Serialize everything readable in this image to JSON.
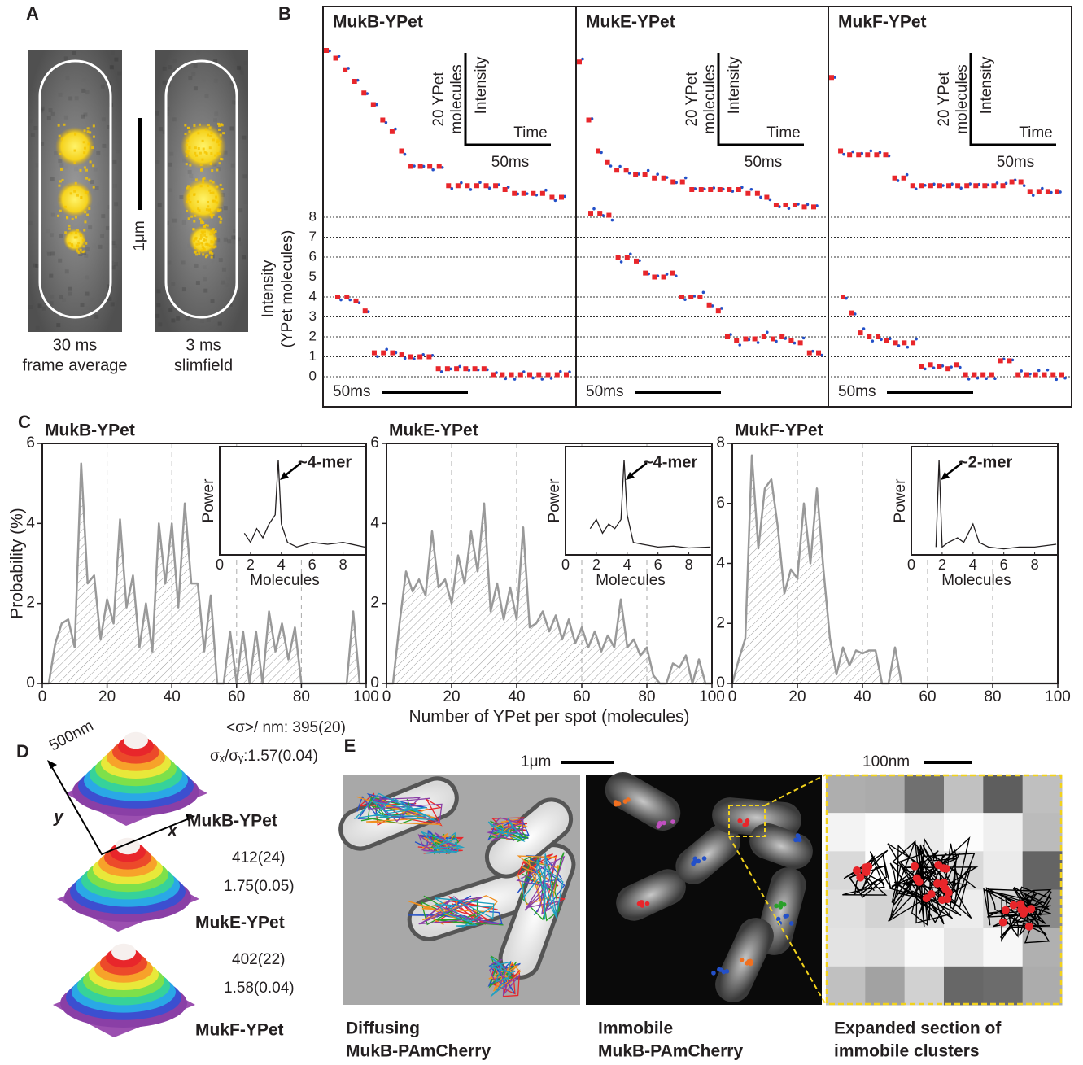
{
  "panel_a": {
    "label": "A",
    "scale_bar": "1μm",
    "images": [
      {
        "caption": [
          "30 ms",
          "frame average"
        ]
      },
      {
        "caption": [
          "3 ms",
          "slimfield"
        ]
      }
    ]
  },
  "panel_b": {
    "label": "B",
    "ylabel": [
      "Intensity",
      "(YPet molecules)"
    ],
    "ylim": [
      0,
      8
    ],
    "yticks": [
      0,
      1,
      2,
      3,
      4,
      5,
      6,
      7,
      8
    ],
    "scale_bar": "50ms",
    "inset": {
      "ylabel": "Intensity",
      "xlabel": "Time",
      "size_label": [
        "20 YPet",
        "molecules"
      ],
      "time_label": "50ms"
    },
    "traces": [
      {
        "title": "MukB-YPet",
        "color": "#e8262b",
        "upper": [
          48,
          46,
          43,
          40,
          37,
          34,
          30,
          27,
          22,
          18,
          18,
          18,
          18,
          13,
          13,
          13,
          13,
          13,
          13,
          12,
          11,
          11,
          11,
          11,
          10,
          10
        ],
        "lower": [
          4,
          4,
          3.8,
          3.3,
          1.2,
          1.2,
          1.2,
          1.1,
          1,
          1,
          1,
          0.4,
          0.4,
          0.4,
          0.4,
          0.4,
          0.4,
          0.1,
          0.1,
          0.1,
          0.1,
          0.1,
          0.1,
          0.1,
          0.1,
          0.1
        ]
      },
      {
        "title": "MukE-YPet",
        "color": "#e8262b",
        "upper": [
          45,
          30,
          22,
          19,
          17,
          17,
          16,
          16,
          15,
          15,
          14,
          14,
          12,
          12,
          12,
          12,
          12,
          12,
          11,
          11,
          10,
          8,
          8,
          8,
          7.5,
          7.5
        ],
        "lower": [
          8.2,
          8.2,
          8.1,
          6.0,
          6.0,
          5.8,
          5.2,
          5.0,
          5.0,
          5.2,
          4.0,
          4.0,
          4.0,
          3.6,
          3.3,
          2.0,
          1.8,
          1.9,
          1.9,
          2.0,
          1.9,
          2.0,
          1.8,
          1.7,
          1.2,
          1.2
        ]
      },
      {
        "title": "MukF-YPet",
        "color": "#e8262b",
        "upper": [
          41,
          22,
          21,
          21,
          21,
          21,
          21,
          15,
          15,
          13,
          13,
          13,
          13,
          13,
          13,
          13,
          13,
          13,
          13,
          13,
          14,
          14,
          11.5,
          11.5,
          11.5,
          11.5
        ],
        "lower": [
          4,
          3.2,
          2.2,
          2.0,
          2.0,
          1.8,
          1.7,
          1.7,
          1.7,
          0.5,
          0.6,
          0.5,
          0.4,
          0.6,
          0.1,
          0.1,
          0.1,
          0.1,
          0.8,
          0.8,
          0.1,
          0.1,
          0.1,
          0.1,
          0.1,
          0.1
        ]
      }
    ]
  },
  "chart_data": [
    {
      "type": "area",
      "panel_label": "C",
      "title": "MukB-YPet",
      "ylabel": "Probability (%)",
      "color": "#999999",
      "grid": true,
      "xlim": [
        0,
        100
      ],
      "xticks": [
        0,
        20,
        40,
        60,
        80,
        100
      ],
      "ylim": [
        0,
        6
      ],
      "yticks": [
        0,
        2,
        4,
        6
      ],
      "x": [
        0,
        2,
        4,
        6,
        8,
        10,
        12,
        14,
        16,
        18,
        20,
        22,
        24,
        26,
        28,
        30,
        32,
        34,
        36,
        38,
        40,
        42,
        44,
        46,
        48,
        50,
        52,
        54,
        56,
        58,
        60,
        62,
        64,
        66,
        68,
        70,
        72,
        74,
        76,
        78,
        80,
        82,
        84,
        86,
        88,
        90,
        92,
        94,
        96,
        98,
        100
      ],
      "values": [
        0,
        0,
        1.0,
        1.5,
        1.6,
        0.9,
        5.5,
        2.5,
        2.7,
        1.1,
        2.1,
        1.5,
        4.1,
        1.9,
        2.7,
        0.9,
        2.0,
        0.8,
        4.0,
        2.5,
        4.0,
        1.9,
        4.5,
        2.5,
        2.5,
        0.8,
        2.2,
        0,
        0,
        1.3,
        0,
        1.3,
        0,
        1.3,
        0,
        1.8,
        0.8,
        1.5,
        0.6,
        1.4,
        0,
        0,
        0,
        0,
        0,
        0,
        0,
        0,
        1.8,
        0,
        0
      ],
      "inset": {
        "type": "line",
        "ylabel": "Power",
        "xlabel": "Molecules",
        "annotation": "~4-mer",
        "xlim": [
          0,
          9.5
        ],
        "xticks": [
          0,
          2,
          4,
          6,
          8
        ],
        "ylim": [
          0,
          1
        ],
        "x": [
          1.6,
          2.0,
          2.4,
          2.8,
          3.2,
          3.6,
          3.8,
          4.0,
          4.4,
          5,
          6,
          7,
          8,
          9.4
        ],
        "values": [
          0.2,
          0.1,
          0.25,
          0.15,
          0.3,
          0.4,
          1.0,
          0.3,
          0.1,
          0.05,
          0.1,
          0.08,
          0.1,
          0.05
        ]
      }
    },
    {
      "type": "area",
      "title": "MukE-YPet",
      "xlabel": "Number of YPet per spot (molecules)",
      "color": "#999999",
      "grid": true,
      "xlim": [
        0,
        100
      ],
      "xticks": [
        0,
        20,
        40,
        60,
        80,
        100
      ],
      "ylim": [
        0,
        6
      ],
      "yticks": [
        0,
        2,
        4,
        6
      ],
      "x": [
        0,
        2,
        4,
        6,
        8,
        10,
        12,
        14,
        16,
        18,
        20,
        22,
        24,
        26,
        28,
        30,
        32,
        34,
        36,
        38,
        40,
        42,
        44,
        46,
        48,
        50,
        52,
        54,
        56,
        58,
        60,
        62,
        64,
        66,
        68,
        70,
        72,
        74,
        76,
        78,
        80,
        82,
        84,
        86,
        88,
        90,
        92,
        94,
        96,
        98,
        100
      ],
      "values": [
        0,
        0,
        1.5,
        2.8,
        2.3,
        2.6,
        2.2,
        3.8,
        2.4,
        2.6,
        2.0,
        3.2,
        2.5,
        3.8,
        2.8,
        4.5,
        1.8,
        2.5,
        1.6,
        2.4,
        1.6,
        3.9,
        1.4,
        1.5,
        1.8,
        1.3,
        1.7,
        1.1,
        1.6,
        1.0,
        1.4,
        0.9,
        1.3,
        0.8,
        1.2,
        0.9,
        2.1,
        0.9,
        1.1,
        0.7,
        0.9,
        0.2,
        0,
        0,
        0.5,
        0.4,
        0.7,
        0,
        0.6,
        0,
        0
      ],
      "inset": {
        "type": "line",
        "ylabel": "Power",
        "xlabel": "Molecules",
        "annotation": "~4-mer",
        "xlim": [
          0,
          9.5
        ],
        "xticks": [
          0,
          2,
          4,
          6,
          8
        ],
        "ylim": [
          0,
          1
        ],
        "x": [
          1.6,
          2.0,
          2.4,
          2.8,
          3.2,
          3.6,
          3.8,
          4.0,
          4.4,
          5,
          6,
          7,
          8,
          9.4
        ],
        "values": [
          0.25,
          0.35,
          0.2,
          0.3,
          0.25,
          0.35,
          1.0,
          0.4,
          0.1,
          0.08,
          0.05,
          0.06,
          0.04,
          0.05
        ]
      }
    },
    {
      "type": "area",
      "title": "MukF-YPet",
      "color": "#999999",
      "grid": true,
      "xlim": [
        0,
        100
      ],
      "xticks": [
        0,
        20,
        40,
        60,
        80,
        100
      ],
      "ylim": [
        0,
        8
      ],
      "yticks": [
        0,
        2,
        4,
        6,
        8
      ],
      "x": [
        0,
        2,
        4,
        6,
        8,
        10,
        12,
        14,
        16,
        18,
        20,
        22,
        24,
        26,
        28,
        30,
        32,
        34,
        36,
        38,
        40,
        42,
        44,
        46,
        48,
        50,
        52,
        54,
        56,
        58,
        60,
        62,
        64,
        66,
        68,
        70,
        72,
        74,
        76,
        78,
        80,
        82,
        84,
        86,
        88,
        90,
        92,
        94,
        96,
        98,
        100
      ],
      "values": [
        0,
        0.8,
        1.5,
        7.6,
        4.5,
        6.5,
        6.8,
        5.2,
        3.0,
        3.8,
        3.5,
        6.0,
        4.0,
        6.5,
        3.8,
        1.5,
        0.3,
        1.2,
        0.6,
        1.1,
        1.0,
        1.1,
        1.1,
        0,
        0,
        1.2,
        0,
        0,
        0,
        0,
        0,
        0,
        0,
        0,
        0,
        0,
        0,
        0,
        0,
        0,
        0,
        0,
        0,
        0,
        0,
        0,
        0,
        0,
        0,
        0,
        0
      ],
      "inset": {
        "type": "line",
        "ylabel": "Power",
        "xlabel": "Molecules",
        "annotation": "~2-mer",
        "xlim": [
          0,
          9.5
        ],
        "xticks": [
          0,
          2,
          4,
          6,
          8
        ],
        "ylim": [
          0,
          1
        ],
        "x": [
          1.6,
          1.8,
          2.0,
          2.4,
          3.0,
          3.4,
          4.0,
          4.4,
          5,
          6,
          7,
          8,
          9.4
        ],
        "values": [
          0.05,
          1.0,
          0.05,
          0.1,
          0.15,
          0.1,
          0.3,
          0.1,
          0.05,
          0.03,
          0.05,
          0.05,
          0.08
        ]
      }
    }
  ],
  "panel_d": {
    "label": "D",
    "scale_label": "500nm",
    "axis_x": "x",
    "axis_y": "y",
    "rows": [
      {
        "name": "MukB-YPet",
        "sigma": "<σ>/ nm:  395(20)",
        "ratio": "σₓ/σᵧ:1.57(0.04)"
      },
      {
        "name": "MukE-YPet",
        "sigma": "412(24)",
        "ratio": "1.75(0.05)"
      },
      {
        "name": "MukF-YPet",
        "sigma": "402(22)",
        "ratio": "1.58(0.04)"
      }
    ]
  },
  "panel_e": {
    "label": "E",
    "scale_bars": [
      "1μm",
      "100nm"
    ],
    "captions": [
      [
        "Diffusing",
        "MukB-PAmCherry"
      ],
      [
        "Immobile",
        "MukB-PAmCherry"
      ],
      [
        "Expanded section of",
        "immobile clusters"
      ]
    ]
  }
}
